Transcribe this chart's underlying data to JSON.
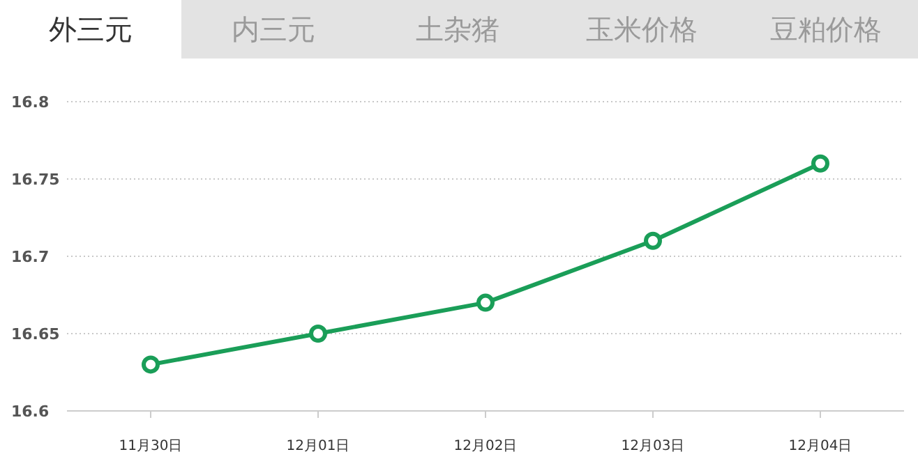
{
  "chart_data": {
    "type": "line",
    "annotations": [
      "外三元",
      "内三元",
      "土杂猪",
      "玉米价格",
      "豆粕价格"
    ],
    "categories": [
      "11月30日",
      "12月01日",
      "12月02日",
      "12月03日",
      "12月04日"
    ],
    "series": [
      {
        "color": "#1a9e58",
        "values": [
          16.63,
          16.65,
          16.67,
          16.71,
          16.76
        ]
      }
    ],
    "ylim": [
      16.6,
      16.8
    ],
    "yticks": [
      16.6,
      16.65,
      16.7,
      16.75,
      16.8
    ],
    "grid": "y",
    "marker": "circle",
    "line_style": "solid"
  }
}
